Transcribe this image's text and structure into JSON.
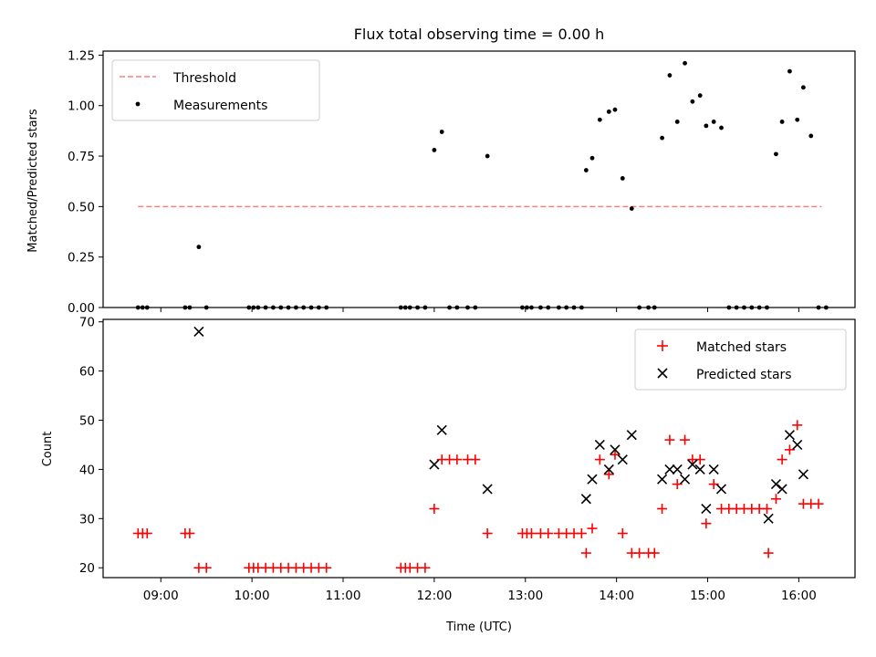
{
  "chart_data": [
    {
      "type": "scatter",
      "title": "Flux total observing time = 0.00 h",
      "xlabel": "",
      "ylabel": "Matched/Predicted stars",
      "xlim": [
        "08:22",
        "16:37"
      ],
      "ylim": [
        0,
        1.27
      ],
      "yticks": [
        "0.00",
        "0.25",
        "0.50",
        "0.75",
        "1.00",
        "1.25"
      ],
      "legend_position": "top-left",
      "grid": false,
      "series": [
        {
          "name": "Threshold",
          "kind": "dashed-line",
          "color": "#ff7f7f",
          "x": [
            "08:45",
            "16:15"
          ],
          "y": [
            0.5,
            0.5
          ]
        },
        {
          "name": "Measurements",
          "kind": "points",
          "color": "#000000",
          "points": [
            [
              "08:45",
              0
            ],
            [
              "08:48",
              0
            ],
            [
              "08:51",
              0
            ],
            [
              "09:16",
              0
            ],
            [
              "09:19",
              0
            ],
            [
              "09:25",
              0.3
            ],
            [
              "09:30",
              0
            ],
            [
              "09:58",
              0
            ],
            [
              "10:01",
              0
            ],
            [
              "10:04",
              0
            ],
            [
              "10:09",
              0
            ],
            [
              "10:14",
              0
            ],
            [
              "10:19",
              0
            ],
            [
              "10:24",
              0
            ],
            [
              "10:29",
              0
            ],
            [
              "10:34",
              0
            ],
            [
              "10:39",
              0
            ],
            [
              "10:44",
              0
            ],
            [
              "10:49",
              0
            ],
            [
              "11:38",
              0
            ],
            [
              "11:41",
              0
            ],
            [
              "11:44",
              0
            ],
            [
              "11:49",
              0
            ],
            [
              "11:54",
              0
            ],
            [
              "12:00",
              0.78
            ],
            [
              "12:05",
              0.87
            ],
            [
              "12:10",
              0
            ],
            [
              "12:15",
              0
            ],
            [
              "12:22",
              0
            ],
            [
              "12:27",
              0
            ],
            [
              "12:35",
              0.75
            ],
            [
              "12:58",
              0
            ],
            [
              "13:01",
              0
            ],
            [
              "13:04",
              0
            ],
            [
              "13:10",
              0
            ],
            [
              "13:15",
              0
            ],
            [
              "13:22",
              0
            ],
            [
              "13:27",
              0
            ],
            [
              "13:32",
              0
            ],
            [
              "13:37",
              0
            ],
            [
              "13:40",
              0.68
            ],
            [
              "13:44",
              0.74
            ],
            [
              "13:49",
              0.93
            ],
            [
              "13:55",
              0.97
            ],
            [
              "13:59",
              0.98
            ],
            [
              "14:04",
              0.64
            ],
            [
              "14:10",
              0.49
            ],
            [
              "14:15",
              0
            ],
            [
              "14:21",
              0
            ],
            [
              "14:25",
              0
            ],
            [
              "14:30",
              0.84
            ],
            [
              "14:35",
              1.15
            ],
            [
              "14:40",
              0.92
            ],
            [
              "14:45",
              1.21
            ],
            [
              "14:50",
              1.02
            ],
            [
              "14:55",
              1.05
            ],
            [
              "14:59",
              0.9
            ],
            [
              "15:04",
              0.92
            ],
            [
              "15:09",
              0.89
            ],
            [
              "15:14",
              0
            ],
            [
              "15:19",
              0
            ],
            [
              "15:24",
              0
            ],
            [
              "15:29",
              0
            ],
            [
              "15:34",
              0
            ],
            [
              "15:39",
              0
            ],
            [
              "15:45",
              0.76
            ],
            [
              "15:49",
              0.92
            ],
            [
              "15:54",
              1.17
            ],
            [
              "15:59",
              0.93
            ],
            [
              "16:03",
              1.09
            ],
            [
              "16:08",
              0.85
            ],
            [
              "16:13",
              0
            ],
            [
              "16:18",
              0
            ]
          ]
        }
      ]
    },
    {
      "type": "scatter",
      "title": "",
      "xlabel": "Time (UTC)",
      "ylabel": "Count",
      "xlim": [
        "08:22",
        "16:37"
      ],
      "ylim": [
        18,
        70.5
      ],
      "xticks": [
        "09:00",
        "10:00",
        "11:00",
        "12:00",
        "13:00",
        "14:00",
        "15:00",
        "16:00"
      ],
      "yticks": [
        "20",
        "30",
        "40",
        "50",
        "60",
        "70"
      ],
      "legend_position": "top-right",
      "grid": false,
      "series": [
        {
          "name": "Matched stars",
          "marker": "+",
          "color": "#ff0000",
          "points": [
            [
              "08:45",
              27
            ],
            [
              "08:48",
              27
            ],
            [
              "08:51",
              27
            ],
            [
              "09:16",
              27
            ],
            [
              "09:19",
              27
            ],
            [
              "09:25",
              20
            ],
            [
              "09:30",
              20
            ],
            [
              "09:58",
              20
            ],
            [
              "10:01",
              20
            ],
            [
              "10:04",
              20
            ],
            [
              "10:09",
              20
            ],
            [
              "10:14",
              20
            ],
            [
              "10:19",
              20
            ],
            [
              "10:24",
              20
            ],
            [
              "10:29",
              20
            ],
            [
              "10:34",
              20
            ],
            [
              "10:39",
              20
            ],
            [
              "10:44",
              20
            ],
            [
              "10:49",
              20
            ],
            [
              "11:38",
              20
            ],
            [
              "11:41",
              20
            ],
            [
              "11:44",
              20
            ],
            [
              "11:49",
              20
            ],
            [
              "11:54",
              20
            ],
            [
              "12:00",
              32
            ],
            [
              "12:05",
              42
            ],
            [
              "12:10",
              42
            ],
            [
              "12:15",
              42
            ],
            [
              "12:22",
              42
            ],
            [
              "12:27",
              42
            ],
            [
              "12:35",
              27
            ],
            [
              "12:58",
              27
            ],
            [
              "13:01",
              27
            ],
            [
              "13:04",
              27
            ],
            [
              "13:10",
              27
            ],
            [
              "13:15",
              27
            ],
            [
              "13:22",
              27
            ],
            [
              "13:27",
              27
            ],
            [
              "13:32",
              27
            ],
            [
              "13:37",
              27
            ],
            [
              "13:40",
              23
            ],
            [
              "13:44",
              28
            ],
            [
              "13:49",
              42
            ],
            [
              "13:55",
              39
            ],
            [
              "13:59",
              43
            ],
            [
              "14:04",
              27
            ],
            [
              "14:10",
              23
            ],
            [
              "14:15",
              23
            ],
            [
              "14:21",
              23
            ],
            [
              "14:25",
              23
            ],
            [
              "14:30",
              32
            ],
            [
              "14:35",
              46
            ],
            [
              "14:40",
              37
            ],
            [
              "14:45",
              46
            ],
            [
              "14:50",
              42
            ],
            [
              "14:55",
              42
            ],
            [
              "14:59",
              29
            ],
            [
              "15:04",
              37
            ],
            [
              "15:09",
              32
            ],
            [
              "15:14",
              32
            ],
            [
              "15:19",
              32
            ],
            [
              "15:24",
              32
            ],
            [
              "15:29",
              32
            ],
            [
              "15:34",
              32
            ],
            [
              "15:39",
              32
            ],
            [
              "15:40",
              23
            ],
            [
              "15:45",
              34
            ],
            [
              "15:49",
              42
            ],
            [
              "15:54",
              44
            ],
            [
              "15:59",
              49
            ],
            [
              "16:03",
              33
            ],
            [
              "16:08",
              33
            ],
            [
              "16:13",
              33
            ]
          ]
        },
        {
          "name": "Predicted stars",
          "marker": "x",
          "color": "#000000",
          "points": [
            [
              "09:25",
              68
            ],
            [
              "12:00",
              41
            ],
            [
              "12:05",
              48
            ],
            [
              "12:35",
              36
            ],
            [
              "13:40",
              34
            ],
            [
              "13:44",
              38
            ],
            [
              "13:49",
              45
            ],
            [
              "13:55",
              40
            ],
            [
              "13:59",
              44
            ],
            [
              "14:04",
              42
            ],
            [
              "14:10",
              47
            ],
            [
              "14:30",
              38
            ],
            [
              "14:35",
              40
            ],
            [
              "14:40",
              40
            ],
            [
              "14:45",
              38
            ],
            [
              "14:50",
              41
            ],
            [
              "14:55",
              40
            ],
            [
              "14:59",
              32
            ],
            [
              "15:04",
              40
            ],
            [
              "15:09",
              36
            ],
            [
              "15:40",
              30
            ],
            [
              "15:45",
              37
            ],
            [
              "15:49",
              36
            ],
            [
              "15:54",
              47
            ],
            [
              "15:59",
              45
            ],
            [
              "16:03",
              39
            ]
          ]
        }
      ]
    }
  ]
}
